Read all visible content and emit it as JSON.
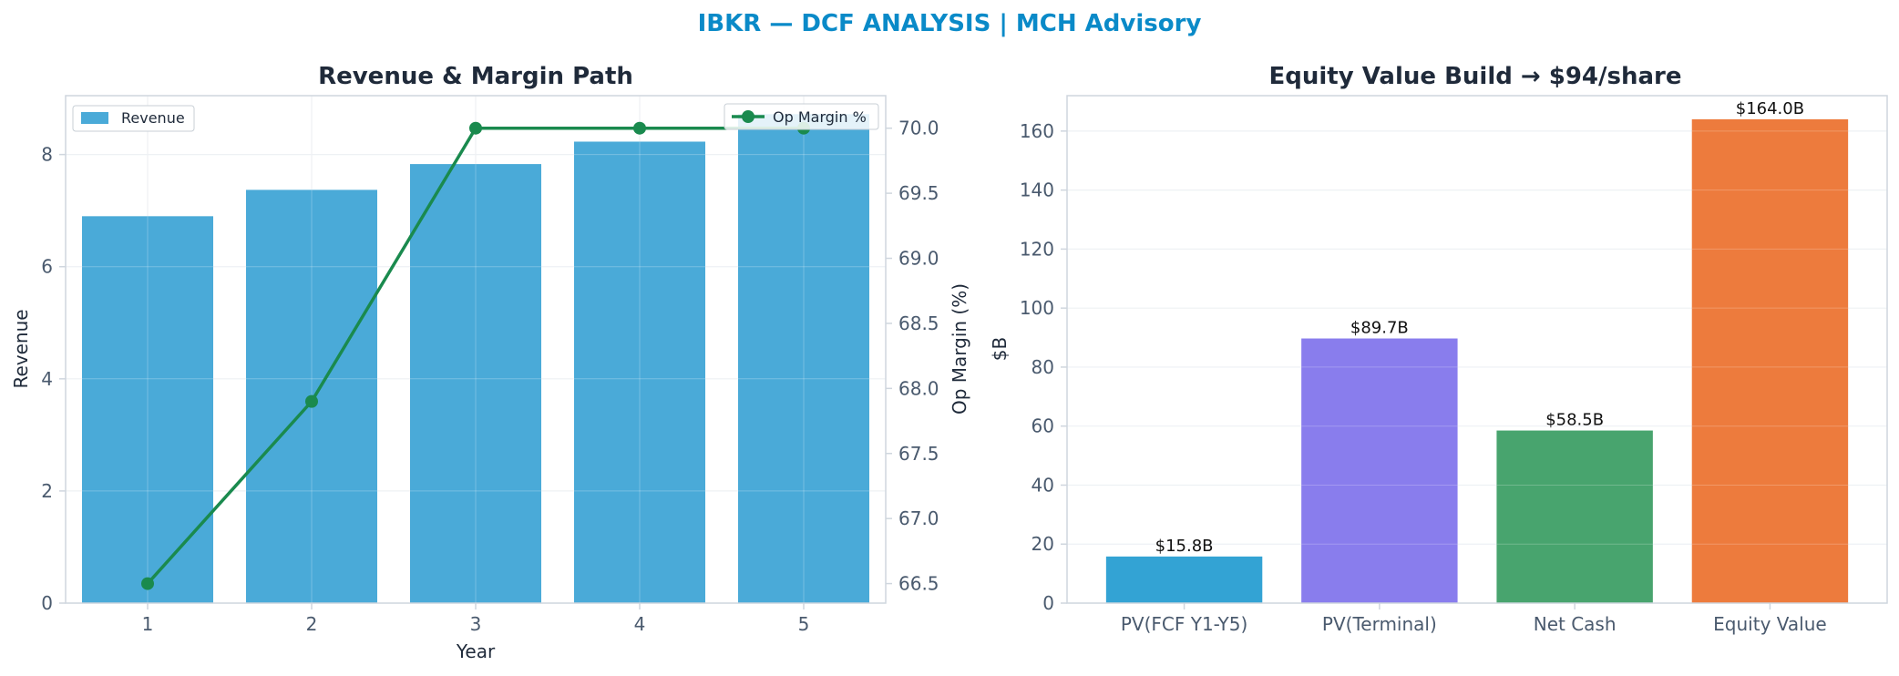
{
  "suptitle": "IBKR — DCF ANALYSIS | MCH Advisory",
  "colors": {
    "title": "#0a8ac8",
    "axis_text": "#1f2a3a",
    "tick_text": "#4a5a6e",
    "spine": "#cfd6de",
    "grid": "#eef1f4",
    "revenue_bar": "#4aaad8",
    "margin_line": "#1a8a4e"
  },
  "chart_data": [
    {
      "type": "bar",
      "title": "Revenue & Margin Path",
      "xlabel": "Year",
      "ylabel": "Revenue",
      "y2label": "Op Margin (%)",
      "categories": [
        "1",
        "2",
        "3",
        "4",
        "5"
      ],
      "ylim": [
        0,
        9.05
      ],
      "y2lim": [
        66.35,
        70.25
      ],
      "yticks": [
        0,
        2,
        4,
        6,
        8
      ],
      "y2ticks": [
        66.5,
        67.0,
        67.5,
        68.0,
        68.5,
        69.0,
        69.5,
        70.0
      ],
      "grid": true,
      "series": [
        {
          "name": "Revenue",
          "type": "bar",
          "axis": "left",
          "values": [
            6.9,
            7.37,
            7.83,
            8.23,
            8.72
          ]
        },
        {
          "name": "Op Margin %",
          "type": "line",
          "axis": "right",
          "values": [
            66.5,
            67.9,
            70.0,
            70.0,
            70.0
          ]
        }
      ],
      "legend": {
        "left": "upper left",
        "right": "upper right"
      }
    },
    {
      "type": "bar",
      "title": "Equity Value Build → $94/share",
      "xlabel": "",
      "ylabel": "$B",
      "categories": [
        "PV(FCF Y1-Y5)",
        "PV(Terminal)",
        "Net Cash",
        "Equity Value"
      ],
      "values": [
        15.8,
        89.7,
        58.5,
        164.0
      ],
      "data_labels": [
        "$15.8B",
        "$89.7B",
        "$58.5B",
        "$164.0B"
      ],
      "bar_colors": [
        "#33a3d4",
        "#897ded",
        "#48a46e",
        "#ed7b3d"
      ],
      "ylim": [
        0,
        172
      ],
      "yticks": [
        0,
        20,
        40,
        60,
        80,
        100,
        120,
        140,
        160
      ],
      "grid": true
    }
  ]
}
